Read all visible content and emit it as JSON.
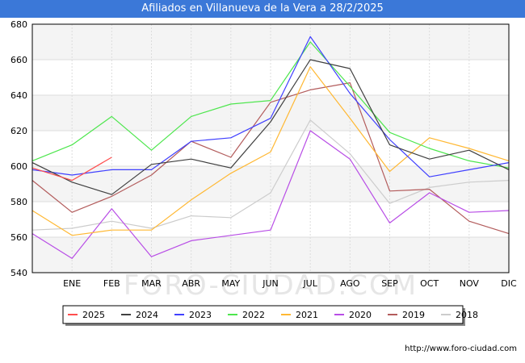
{
  "header": {
    "title": "Afiliados en Villanueva de la Vera a 28/2/2025"
  },
  "watermark": "FORO-CIUDAD.COM",
  "footer": {
    "url": "http://www.foro-ciudad.com"
  },
  "chart_data": {
    "type": "line",
    "title": "Afiliados en Villanueva de la Vera a 28/2/2025",
    "xlabel": "",
    "ylabel": "",
    "categories": [
      "",
      "ENE",
      "FEB",
      "MAR",
      "ABR",
      "MAY",
      "JUN",
      "JUL",
      "AGO",
      "SEP",
      "OCT",
      "NOV",
      "DIC"
    ],
    "ylim": [
      540,
      680
    ],
    "yticks": [
      540,
      560,
      580,
      600,
      620,
      640,
      660,
      680
    ],
    "grid": true,
    "legend_position": "bottom",
    "series": [
      {
        "name": "2025",
        "color": "#ff4d4d",
        "values": [
          599,
          592,
          605,
          null,
          null,
          null,
          null,
          null,
          null,
          null,
          null,
          null,
          null
        ]
      },
      {
        "name": "2024",
        "color": "#404040",
        "values": [
          602,
          591,
          584,
          601,
          604,
          599,
          625,
          660,
          655,
          612,
          604,
          609,
          598
        ]
      },
      {
        "name": "2023",
        "color": "#4040ff",
        "values": [
          598,
          595,
          598,
          598,
          614,
          616,
          627,
          673,
          641,
          615,
          594,
          598,
          602
        ]
      },
      {
        "name": "2022",
        "color": "#4de64d",
        "values": [
          603,
          612,
          628,
          609,
          628,
          635,
          637,
          670,
          645,
          619,
          610,
          603,
          599
        ]
      },
      {
        "name": "2021",
        "color": "#ffb833",
        "values": [
          575,
          561,
          564,
          564,
          581,
          596,
          608,
          656,
          627,
          597,
          616,
          610,
          603
        ]
      },
      {
        "name": "2020",
        "color": "#b84de6",
        "values": [
          562,
          548,
          576,
          549,
          558,
          561,
          564,
          620,
          604,
          568,
          585,
          574,
          575
        ]
      },
      {
        "name": "2019",
        "color": "#b35c5c",
        "values": [
          592,
          574,
          583,
          595,
          614,
          605,
          636,
          643,
          647,
          586,
          587,
          569,
          562
        ]
      },
      {
        "name": "2018",
        "color": "#cccccc",
        "values": [
          564,
          565,
          569,
          565,
          572,
          571,
          585,
          626,
          607,
          579,
          588,
          591,
          592
        ]
      }
    ]
  }
}
